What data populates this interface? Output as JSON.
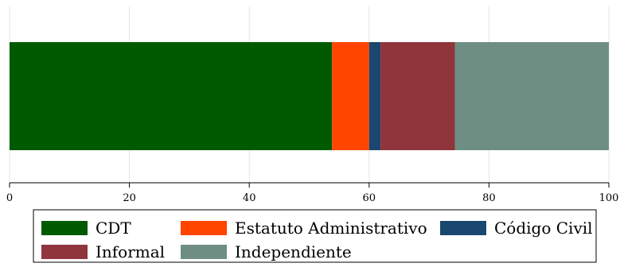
{
  "chart_data": {
    "type": "bar",
    "orientation": "horizontal",
    "stacked": true,
    "title": "",
    "xlabel": "",
    "ylabel": "",
    "xlim": [
      0,
      100
    ],
    "x_ticks": [
      0,
      20,
      40,
      60,
      80,
      100
    ],
    "grid": true,
    "legend_position": "bottom",
    "series": [
      {
        "name": "CDT",
        "values": [
          53.8
        ],
        "color": "#005a00"
      },
      {
        "name": "Estatuto Administrativo",
        "values": [
          6.2
        ],
        "color": "#ff4500"
      },
      {
        "name": "Código Civil",
        "values": [
          1.9
        ],
        "color": "#1a476f"
      },
      {
        "name": "Informal",
        "values": [
          12.4
        ],
        "color": "#90353b"
      },
      {
        "name": "Independiente",
        "values": [
          25.7
        ],
        "color": "#6e8e84"
      }
    ]
  }
}
